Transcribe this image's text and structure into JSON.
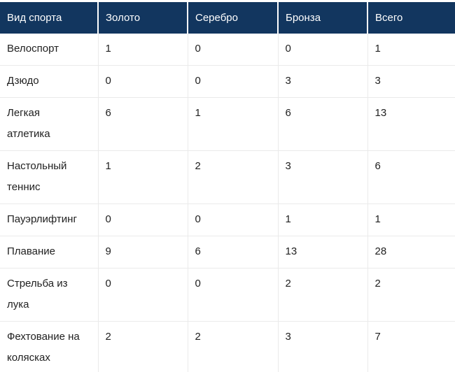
{
  "chart_data": {
    "type": "table",
    "title": "",
    "columns": [
      "Вид спорта",
      "Золото",
      "Серебро",
      "Бронза",
      "Всего"
    ],
    "rows": [
      [
        "Велоспорт",
        1,
        0,
        0,
        1
      ],
      [
        "Дзюдо",
        0,
        0,
        3,
        3
      ],
      [
        "Легкая атлетика",
        6,
        1,
        6,
        13
      ],
      [
        "Настольный теннис",
        1,
        2,
        3,
        6
      ],
      [
        "Пауэрлифтинг",
        0,
        0,
        1,
        1
      ],
      [
        "Плавание",
        9,
        6,
        13,
        28
      ],
      [
        "Стрельба из лука",
        0,
        0,
        2,
        2
      ],
      [
        "Фехтование на колясках",
        2,
        2,
        3,
        7
      ]
    ]
  },
  "colors": {
    "header_background": "#12365f",
    "header_text": "#ffffff",
    "body_text": "#212121",
    "grid_border": "#eaeaea"
  }
}
